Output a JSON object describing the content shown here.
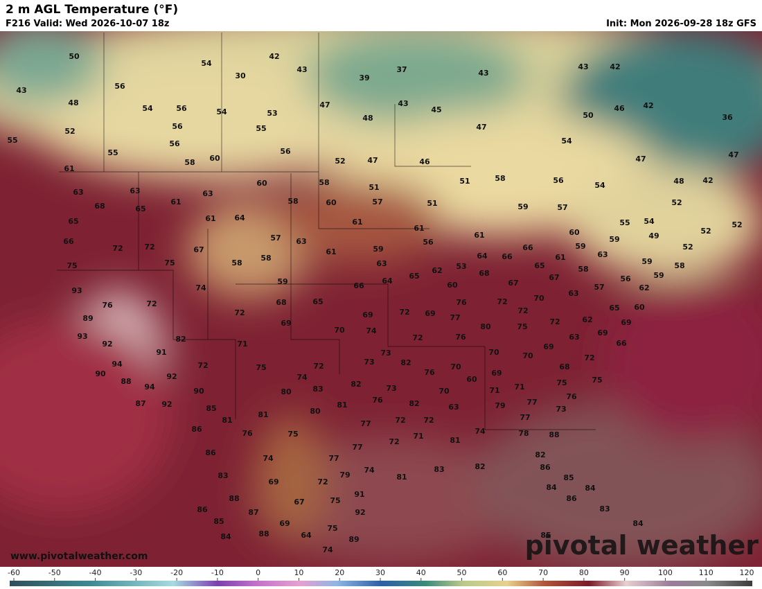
{
  "header": {
    "title": "2 m AGL Temperature (°F)",
    "valid": "F216 Valid: Wed 2026-10-07 18z",
    "init": "Init: Mon 2026-09-28 18z GFS"
  },
  "footer": {
    "url": "www.pivotalweather.com",
    "logo": "pivotal weather"
  },
  "colorbar": {
    "ticks": [
      -60,
      -50,
      -40,
      -30,
      -20,
      -10,
      0,
      10,
      20,
      30,
      40,
      50,
      60,
      70,
      80,
      90,
      100,
      110,
      120
    ]
  },
  "stations": [
    50,
    54,
    42,
    43,
    30,
    39,
    37,
    43,
    43,
    42,
    43,
    56,
    48,
    54,
    56,
    54,
    53,
    47,
    43,
    45,
    50,
    46,
    42,
    36,
    52,
    56,
    55,
    48,
    47,
    55,
    56,
    55,
    56,
    54,
    47,
    47,
    61,
    58,
    60,
    52,
    47,
    46,
    58,
    56,
    54,
    48,
    42,
    63,
    63,
    63,
    60,
    58,
    51,
    51,
    68,
    65,
    61,
    58,
    60,
    57,
    51,
    59,
    57,
    52,
    65,
    61,
    64,
    61,
    61,
    55,
    54,
    52,
    52,
    66,
    72,
    72,
    67,
    57,
    63,
    61,
    59,
    56,
    61,
    66,
    60,
    59,
    59,
    49,
    52,
    75,
    75,
    58,
    58,
    63,
    53,
    64,
    66,
    65,
    61,
    63,
    58,
    59,
    58,
    93,
    74,
    59,
    66,
    64,
    65,
    62,
    60,
    68,
    67,
    67,
    57,
    56,
    59,
    62,
    76,
    72,
    68,
    65,
    76,
    72,
    70,
    63,
    60,
    65,
    89,
    72,
    69,
    69,
    72,
    69,
    77,
    72,
    75,
    80,
    72,
    62,
    69,
    93,
    70,
    74,
    72,
    76,
    63,
    69,
    66,
    92,
    82,
    71,
    69,
    91,
    73,
    70,
    70,
    72,
    94,
    72,
    75,
    72,
    73,
    82,
    76,
    70,
    69,
    68,
    90,
    92,
    74,
    60,
    71,
    75,
    75,
    88,
    94,
    83,
    82,
    73,
    71,
    76,
    90,
    80,
    76,
    70,
    77,
    79,
    73,
    87,
    92,
    85,
    81,
    82,
    63,
    81,
    81,
    80,
    77,
    72,
    72,
    77,
    86,
    76,
    75,
    78,
    88,
    71,
    81,
    74,
    86,
    72,
    77,
    77,
    82,
    74,
    74,
    81,
    83,
    82,
    86,
    85,
    83,
    79,
    69,
    72,
    84,
    84,
    88,
    91,
    75,
    67,
    86,
    86,
    87,
    92,
    83,
    85,
    69,
    75,
    84,
    84,
    88,
    64,
    89,
    85,
    74
  ]
}
